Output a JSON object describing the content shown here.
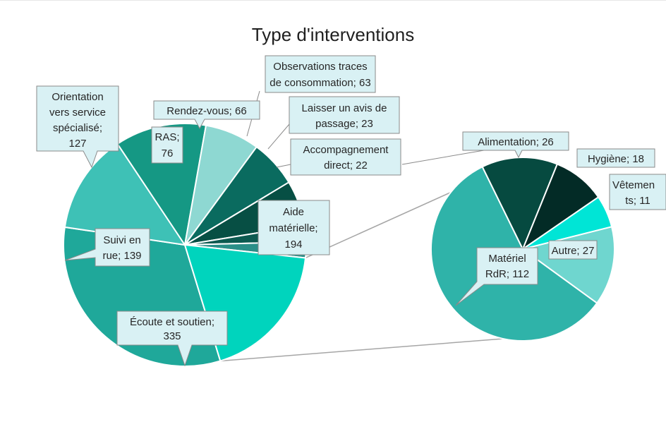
{
  "chart_data": {
    "type": "pie",
    "subtype": "pie-of-pie",
    "title": "Type d'interventions",
    "main_pie": {
      "slices": [
        {
          "label": "Écoute et soutien",
          "value": 335,
          "color": "#1fa89a"
        },
        {
          "label": "Suivi en rue",
          "value": 139,
          "color": "#3ec1b6"
        },
        {
          "label": "Orientation vers service spécialisé",
          "value": 127,
          "color": "#159884"
        },
        {
          "label": "RAS",
          "value": 76,
          "color": "#8ed8d2"
        },
        {
          "label": "Rendez-vous",
          "value": 66,
          "color": "#0a6b5f"
        },
        {
          "label": "Observations traces de consommation",
          "value": 63,
          "color": "#074f44"
        },
        {
          "label": "Laisser un avis de passage",
          "value": 23,
          "color": "#0c5a50"
        },
        {
          "label": "Accompagnement direct",
          "value": 22,
          "color": "#2a8f88"
        },
        {
          "label": "Aide matérielle",
          "value": 194,
          "color": "#00d4bd"
        }
      ]
    },
    "secondary_pie": {
      "parent": "Aide matérielle",
      "slices": [
        {
          "label": "Matériel RdR",
          "value": 112,
          "color": "#2fb3a9"
        },
        {
          "label": "Alimentation",
          "value": 26,
          "color": "#064a40"
        },
        {
          "label": "Hygiène",
          "value": 18,
          "color": "#032b26"
        },
        {
          "label": "Vêtements",
          "value": 11,
          "color": "#00e5d6"
        },
        {
          "label": "Autre",
          "value": 27,
          "color": "#6fd6cf"
        }
      ]
    },
    "legend": "none",
    "data_labels": "callout"
  },
  "labels": {
    "ecoute": {
      "l1": "Écoute et soutien;",
      "l2": "335"
    },
    "suivi": {
      "l1": "Suivi en",
      "l2": "rue; 139"
    },
    "orientation": {
      "l1": "Orientation",
      "l2": "vers service",
      "l3": "spécialisé;",
      "l4": "127"
    },
    "ras": {
      "l1": "RAS;",
      "l2": "76"
    },
    "rdv": {
      "l1": "Rendez-vous; 66"
    },
    "observations": {
      "l1": "Observations traces",
      "l2": "de consommation; 63"
    },
    "laisser": {
      "l1": "Laisser un avis de",
      "l2": "passage; 23"
    },
    "accomp": {
      "l1": "Accompagnement",
      "l2": "direct; 22"
    },
    "aide": {
      "l1": "Aide",
      "l2": "matérielle;",
      "l3": "194"
    },
    "alimentation": {
      "l1": "Alimentation; 26"
    },
    "hygiene": {
      "l1": "Hygiène; 18"
    },
    "vetements": {
      "l1": "Vêtemen",
      "l2": "ts; 11"
    },
    "autre": {
      "l1": "Autre; 27"
    },
    "materiel": {
      "l1": "Matériel",
      "l2": "RdR; 112"
    }
  }
}
